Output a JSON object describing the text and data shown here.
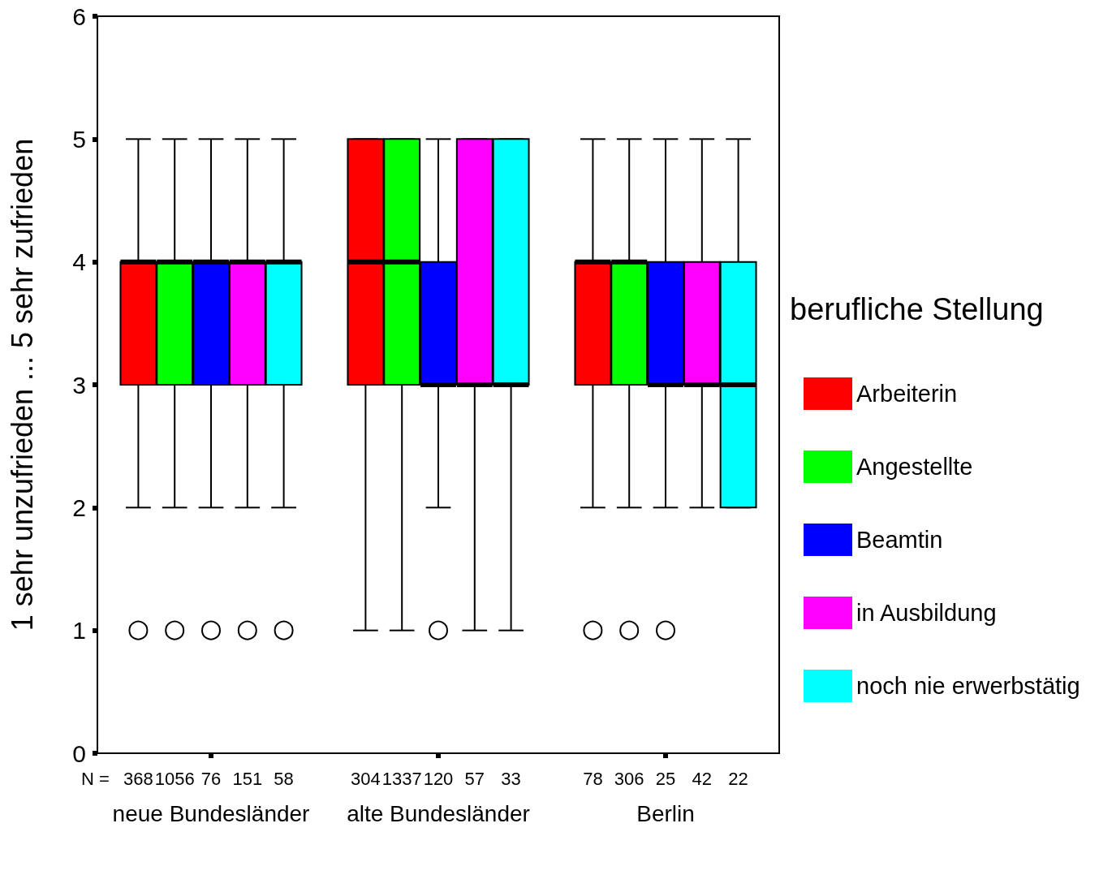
{
  "chart_data": {
    "type": "box",
    "ylabel": "1 sehr unzufrieden ... 5 sehr zufrieden",
    "legend_title": "berufliche Stellung",
    "categories": [
      "neue Bundesländer",
      "alte Bundesländer",
      "Berlin"
    ],
    "ylim": [
      0,
      6
    ],
    "yticks": [
      0,
      1,
      2,
      3,
      4,
      5,
      6
    ],
    "grid": false,
    "legend": "right",
    "marker": "circle",
    "series": [
      {
        "name": "Arbeiterin",
        "color": "#ff0000",
        "boxes": [
          {
            "low": 2,
            "q1": 3,
            "median": 4,
            "q3": 4,
            "high": 5,
            "outliers": [
              1
            ]
          },
          {
            "low": 1,
            "q1": 3,
            "median": 4,
            "q3": 5,
            "high": 5
          },
          {
            "low": 2,
            "q1": 3,
            "median": 4,
            "q3": 4,
            "high": 5,
            "outliers": [
              1
            ]
          }
        ]
      },
      {
        "name": "Angestellte",
        "color": "#00ff00",
        "boxes": [
          {
            "low": 2,
            "q1": 3,
            "median": 4,
            "q3": 4,
            "high": 5,
            "outliers": [
              1
            ]
          },
          {
            "low": 1,
            "q1": 3,
            "median": 4,
            "q3": 5,
            "high": 5
          },
          {
            "low": 2,
            "q1": 3,
            "median": 4,
            "q3": 4,
            "high": 5,
            "outliers": [
              1
            ]
          }
        ]
      },
      {
        "name": "Beamtin",
        "color": "#0000ff",
        "boxes": [
          {
            "low": 2,
            "q1": 3,
            "median": 4,
            "q3": 4,
            "high": 5,
            "outliers": [
              1
            ]
          },
          {
            "low": 2,
            "q1": 3,
            "median": 3,
            "q3": 4,
            "high": 5,
            "outliers": [
              1
            ]
          },
          {
            "low": 2,
            "q1": 3,
            "median": 3,
            "q3": 4,
            "high": 5,
            "outliers": [
              1
            ]
          }
        ]
      },
      {
        "name": "in Ausbildung",
        "color": "#ff00ff",
        "boxes": [
          {
            "low": 2,
            "q1": 3,
            "median": 4,
            "q3": 4,
            "high": 5,
            "outliers": [
              1
            ]
          },
          {
            "low": 1,
            "q1": 3,
            "median": 3,
            "q3": 5,
            "high": 5
          },
          {
            "low": 2,
            "q1": 3,
            "median": 3,
            "q3": 4,
            "high": 5
          }
        ]
      },
      {
        "name": "noch nie erwerbstätig",
        "color": "#00ffff",
        "boxes": [
          {
            "low": 2,
            "q1": 3,
            "median": 4,
            "q3": 4,
            "high": 5,
            "outliers": [
              1
            ]
          },
          {
            "low": 1,
            "q1": 3,
            "median": 3,
            "q3": 5,
            "high": 5
          },
          {
            "low": 2,
            "q1": 2,
            "median": 3,
            "q3": 4,
            "high": 5
          }
        ]
      }
    ],
    "annotations": [
      "N =",
      "368",
      "1056",
      "76",
      "151",
      "58",
      "304",
      "1337",
      "120",
      "57",
      "33",
      "78",
      "306",
      "25",
      "42",
      "22"
    ]
  }
}
